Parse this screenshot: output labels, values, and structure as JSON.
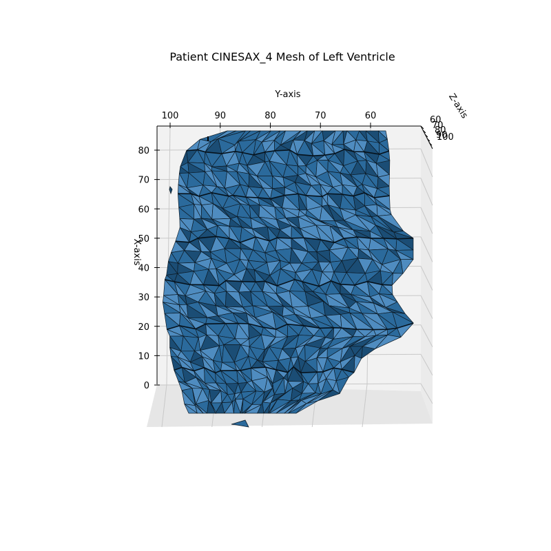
{
  "chart_data": {
    "type": "mesh3d",
    "title": "Patient CINESAX_4 Mesh of Left Ventricle",
    "xlabel": "X-axis",
    "ylabel": "Y-axis",
    "zlabel": "Z-axis",
    "x_ticks": [
      "0",
      "10",
      "20",
      "30",
      "40",
      "50",
      "60",
      "70",
      "80"
    ],
    "y_ticks": [
      "100",
      "90",
      "80",
      "70",
      "60"
    ],
    "z_ticks": [
      "60",
      "70",
      "80",
      "90",
      "100"
    ],
    "xlim": [
      0,
      88
    ],
    "ylim": [
      104,
      50
    ],
    "zlim": [
      55,
      105
    ],
    "grid": true,
    "colors": {
      "face": "#2b6a9c",
      "face_light": "#4f8cc0",
      "face_dark": "#1b4d75",
      "edge": "#0d1b26",
      "pane": "#f2f2f2",
      "gridline": "#c8c8c8"
    }
  }
}
